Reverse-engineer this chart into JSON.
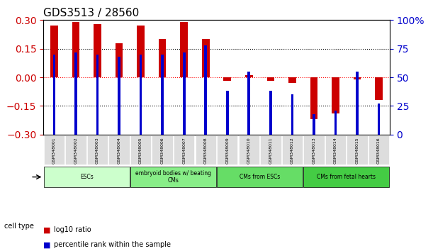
{
  "title": "GDS3513 / 28560",
  "samples": [
    "GSM348001",
    "GSM348002",
    "GSM348003",
    "GSM348004",
    "GSM348005",
    "GSM348006",
    "GSM348007",
    "GSM348008",
    "GSM348009",
    "GSM348010",
    "GSM348011",
    "GSM348012",
    "GSM348013",
    "GSM348014",
    "GSM348015",
    "GSM348016"
  ],
  "log10_ratio": [
    0.27,
    0.29,
    0.28,
    0.18,
    0.27,
    0.2,
    0.29,
    0.2,
    -0.02,
    0.01,
    -0.02,
    -0.03,
    -0.22,
    -0.19,
    -0.01,
    -0.12
  ],
  "percentile_rank": [
    70,
    72,
    70,
    68,
    70,
    70,
    72,
    78,
    38,
    55,
    38,
    35,
    18,
    21,
    55,
    27
  ],
  "cell_types": [
    {
      "label": "ESCs",
      "start": 0,
      "end": 4,
      "color": "#ccffcc"
    },
    {
      "label": "embryoid bodies w/ beating\nCMs",
      "start": 4,
      "end": 8,
      "color": "#88ee88"
    },
    {
      "label": "CMs from ESCs",
      "start": 8,
      "end": 12,
      "color": "#66dd66"
    },
    {
      "label": "CMs from fetal hearts",
      "start": 12,
      "end": 16,
      "color": "#44cc44"
    }
  ],
  "bar_color_red": "#cc0000",
  "bar_color_blue": "#0000cc",
  "ylim_left": [
    -0.3,
    0.3
  ],
  "ylim_right": [
    0,
    100
  ],
  "yticks_left": [
    -0.3,
    -0.15,
    0,
    0.15,
    0.3
  ],
  "yticks_right": [
    0,
    25,
    50,
    75,
    100
  ],
  "hline_values": [
    -0.15,
    0,
    0.15
  ],
  "bar_width": 0.35,
  "blue_bar_width": 0.12,
  "figsize": [
    6.11,
    3.54
  ],
  "dpi": 100,
  "legend_items": [
    {
      "color": "#cc0000",
      "label": "log10 ratio"
    },
    {
      "color": "#0000cc",
      "label": "percentile rank within the sample"
    }
  ],
  "cell_type_label": "cell type",
  "tick_label_color_left": "#cc0000",
  "tick_label_color_right": "#0000cc"
}
